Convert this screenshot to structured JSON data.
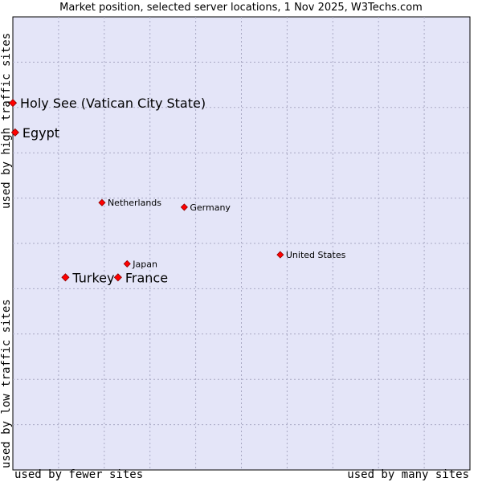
{
  "chart_data": {
    "type": "scatter",
    "title": "Market position, selected server locations, 1 Nov 2025, W3Techs.com",
    "xlabel_low": "used by fewer sites",
    "xlabel_high": "used by many sites",
    "ylabel_low": "used by low traffic sites",
    "ylabel_high": "used by high traffic sites",
    "xlim": [
      0,
      10
    ],
    "ylim": [
      0,
      10
    ],
    "grid": true,
    "colors": {
      "plot_background": "#e4e5f8",
      "grid": "#a9a9c4",
      "marker": "#ff0000",
      "marker_stroke": "#8b0000",
      "text": "#000000"
    },
    "points": [
      {
        "label": "Holy See (Vatican City State)",
        "x": 0.0,
        "y": 8.1,
        "highlight": true
      },
      {
        "label": "Egypt",
        "x": 0.05,
        "y": 7.45,
        "highlight": true
      },
      {
        "label": "Netherlands",
        "x": 1.95,
        "y": 5.9,
        "highlight": false
      },
      {
        "label": "Germany",
        "x": 3.75,
        "y": 5.8,
        "highlight": false
      },
      {
        "label": "United States",
        "x": 5.85,
        "y": 4.75,
        "highlight": false
      },
      {
        "label": "Japan",
        "x": 2.5,
        "y": 4.55,
        "highlight": false
      },
      {
        "label": "France",
        "x": 2.3,
        "y": 4.25,
        "highlight": true
      },
      {
        "label": "Turkey",
        "x": 1.15,
        "y": 4.25,
        "highlight": true
      }
    ]
  }
}
